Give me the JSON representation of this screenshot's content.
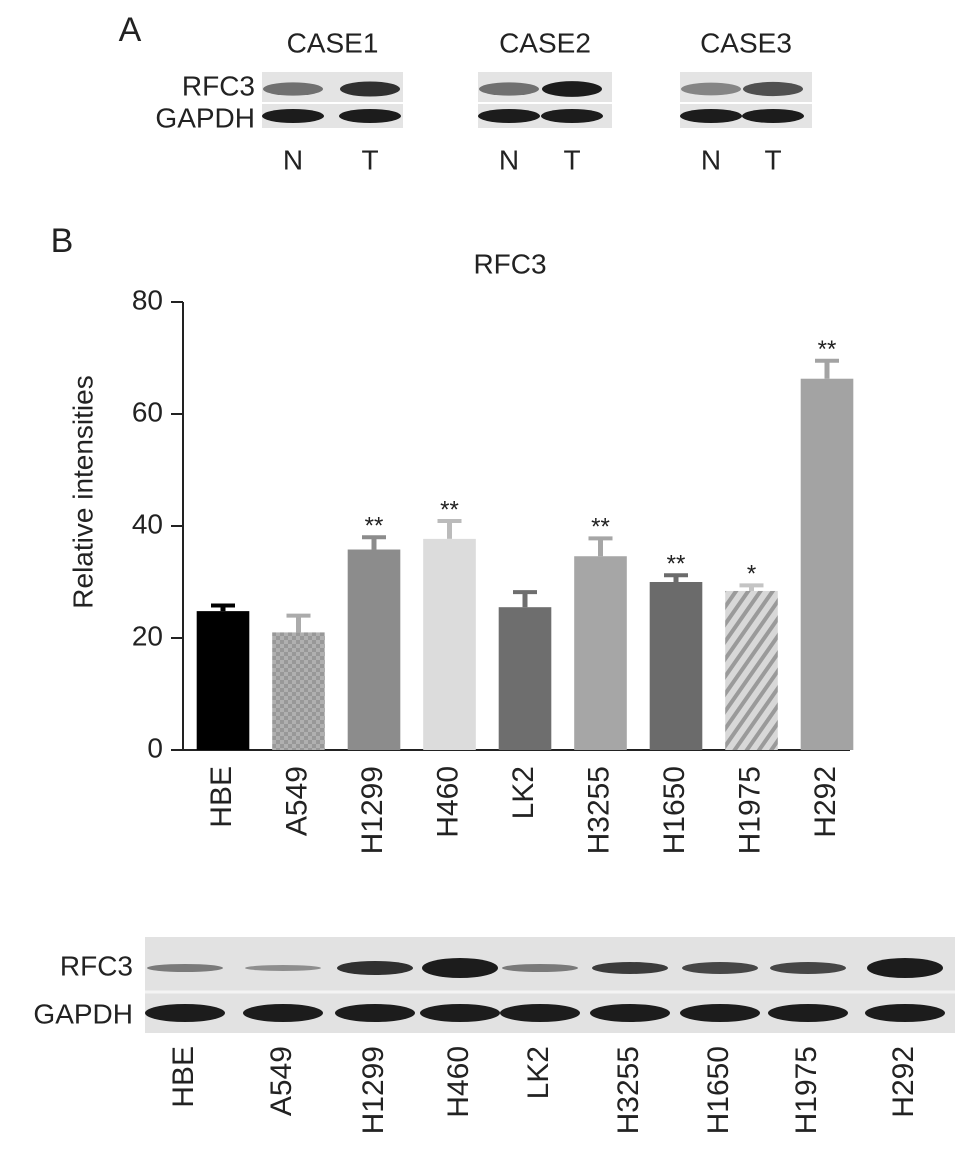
{
  "panel_a": {
    "label": "A",
    "row_labels": [
      "RFC3",
      "GAPDH"
    ],
    "cases": [
      {
        "name": "CASE1",
        "lanes": [
          "N",
          "T"
        ]
      },
      {
        "name": "CASE2",
        "lanes": [
          "N",
          "T"
        ]
      },
      {
        "name": "CASE3",
        "lanes": [
          "N",
          "T"
        ]
      }
    ]
  },
  "panel_b": {
    "label": "B",
    "blot_row_labels": [
      "RFC3",
      "GAPDH"
    ]
  },
  "chart_data": {
    "type": "bar",
    "title": "RFC3",
    "y_label": "Relative intensities",
    "categories": [
      "HBE",
      "A549",
      "H1299",
      "H460",
      "LK2",
      "H3255",
      "H1650",
      "H1975",
      "H292"
    ],
    "values": [
      24.8,
      21,
      35.8,
      37.7,
      25.5,
      34.6,
      30,
      28.4,
      66.3
    ],
    "errors": [
      1,
      3,
      2.2,
      3.2,
      2.7,
      3.2,
      1.2,
      1,
      3.2
    ],
    "significance": [
      null,
      null,
      "**",
      "**",
      null,
      "**",
      "**",
      "*",
      "**"
    ],
    "colors": [
      "#000000",
      "#ababab",
      "#8c8c8c",
      "#dcdcdc",
      "#6e6e6e",
      "#a6a6a6",
      "#6b6b6b",
      "#c4c4c4",
      "#a3a3a3"
    ],
    "ylim": [
      0,
      80
    ],
    "yticks": [
      0,
      20,
      40,
      60,
      80
    ]
  }
}
